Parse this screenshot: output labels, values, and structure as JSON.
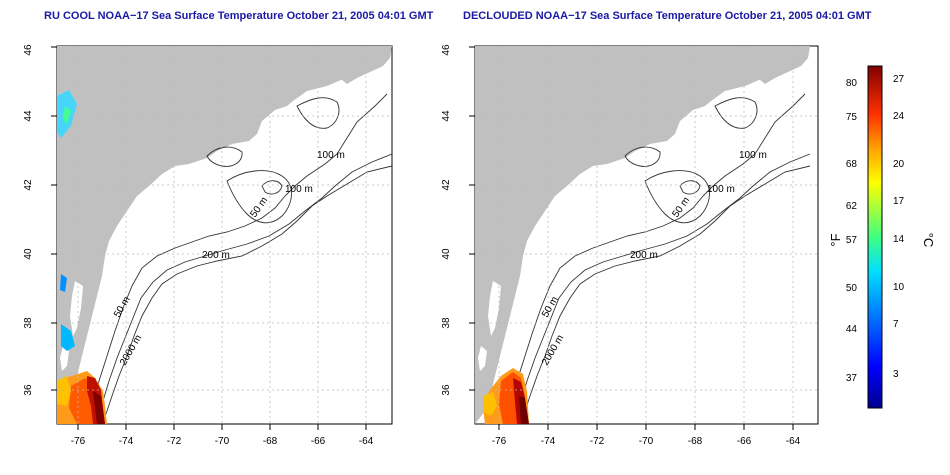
{
  "panels": [
    {
      "title": "RU COOL NOAA−17 Sea Surface Temperature October 21, 2005 04:01 GMT",
      "x_ticks": [
        "-76",
        "-74",
        "-72",
        "-70",
        "-68",
        "-66",
        "-64"
      ],
      "y_ticks": [
        "36",
        "38",
        "40",
        "42",
        "44",
        "46"
      ],
      "contour_labels": [
        "100 m",
        "100 m",
        "50 m",
        "200 m",
        "50 m",
        "2000 m"
      ]
    },
    {
      "title": "DECLOUDED NOAA−17 Sea Surface Temperature October 21, 2005 04:01 GMT",
      "x_ticks": [
        "-76",
        "-74",
        "-72",
        "-70",
        "-68",
        "-66",
        "-64"
      ],
      "y_ticks": [
        "36",
        "38",
        "40",
        "42",
        "44",
        "46"
      ],
      "contour_labels": [
        "100 m",
        "100 m",
        "50 m",
        "200 m",
        "50 m",
        "2000 m"
      ]
    }
  ],
  "colorbar": {
    "fahrenheit_label": "°F",
    "celsius_label": "°C",
    "fahrenheit_ticks": [
      "80",
      "75",
      "68",
      "62",
      "57",
      "50",
      "44",
      "37"
    ],
    "celsius_ticks": [
      "27",
      "24",
      "20",
      "17",
      "14",
      "10",
      "7",
      "3"
    ]
  },
  "colors": {
    "land": "#c0c0c0",
    "ocean": "#ffffff",
    "title": "#1a1aa6",
    "contour": "#333333",
    "grid": "#bbbbbb"
  }
}
